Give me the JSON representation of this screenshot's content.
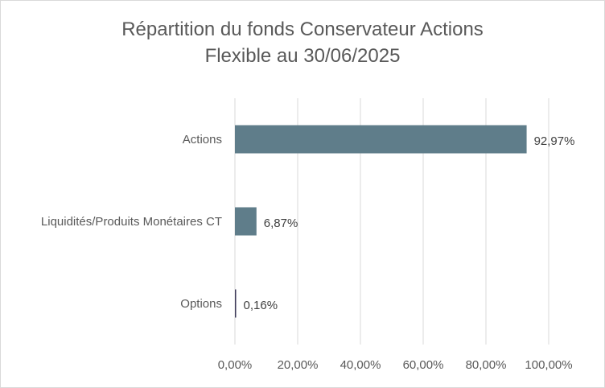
{
  "chart_data": {
    "type": "bar",
    "orientation": "horizontal",
    "title_lines": [
      "Répartition du fonds Conservateur Actions",
      "Flexible au 30/06/2025"
    ],
    "categories": [
      "Actions",
      "Liquidités/Produits Monétaires CT",
      "Options"
    ],
    "values": [
      92.97,
      6.87,
      0.16
    ],
    "data_labels": [
      "92,97%",
      "6,87%",
      "0,16%"
    ],
    "xlim": [
      0,
      100
    ],
    "x_ticks": [
      0,
      20,
      40,
      60,
      80,
      100
    ],
    "x_tick_labels": [
      "0,00%",
      "20,00%",
      "40,00%",
      "60,00%",
      "80,00%",
      "100,00%"
    ],
    "grid": "vertical",
    "legend": "none",
    "colors": {
      "bar": "#5f7d8a",
      "options_bar": "#3e3a5a",
      "gridline": "#d9d9d9",
      "text": "#595959"
    }
  }
}
